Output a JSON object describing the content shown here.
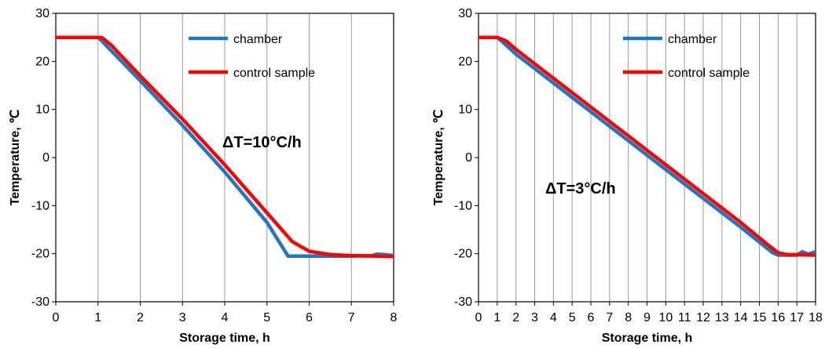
{
  "chart_data": [
    {
      "type": "line",
      "title": "",
      "xlabel": "Storage time, h",
      "ylabel": "Temperature, ℃",
      "xlim": [
        0,
        8
      ],
      "ylim": [
        -30,
        30
      ],
      "xticks": [
        "0",
        "1",
        "2",
        "3",
        "4",
        "5",
        "6",
        "7",
        "8"
      ],
      "yticks": [
        "-30",
        "-20",
        "-10",
        "0",
        "10",
        "20",
        "30"
      ],
      "grid": "vertical",
      "legend": "top-right",
      "annotation": "ΔT=10°C/h",
      "series": [
        {
          "name": "chamber",
          "color": "#1f77c4",
          "points": [
            [
              0,
              25
            ],
            [
              1,
              25
            ],
            [
              1.05,
              24.6
            ],
            [
              2,
              16
            ],
            [
              3,
              6.7
            ],
            [
              4,
              -3
            ],
            [
              5,
              -13.5
            ],
            [
              5.5,
              -20.5
            ],
            [
              6,
              -20.5
            ],
            [
              7,
              -20.5
            ],
            [
              7.5,
              -20.4
            ],
            [
              7.6,
              -20.1
            ],
            [
              7.8,
              -20.2
            ],
            [
              8,
              -20.4
            ]
          ]
        },
        {
          "name": "control sample",
          "color": "#ff0000",
          "points": [
            [
              0,
              25
            ],
            [
              1,
              25
            ],
            [
              1.1,
              24.9
            ],
            [
              1.3,
              23.5
            ],
            [
              2,
              17
            ],
            [
              3,
              8
            ],
            [
              4,
              -1.5
            ],
            [
              5,
              -11.5
            ],
            [
              5.6,
              -17.5
            ],
            [
              6,
              -19.5
            ],
            [
              6.5,
              -20.2
            ],
            [
              7,
              -20.4
            ],
            [
              8,
              -20.6
            ]
          ]
        }
      ]
    },
    {
      "type": "line",
      "title": "",
      "xlabel": "Storage time, h",
      "ylabel": "Temperature, ℃",
      "xlim": [
        0,
        18
      ],
      "ylim": [
        -30,
        30
      ],
      "xticks": [
        "0",
        "1",
        "2",
        "3",
        "4",
        "5",
        "6",
        "7",
        "8",
        "9",
        "10",
        "11",
        "12",
        "13",
        "14",
        "15",
        "16",
        "17",
        "18"
      ],
      "yticks": [
        "-30",
        "-20",
        "-10",
        "0",
        "10",
        "20",
        "30"
      ],
      "grid": "vertical",
      "legend": "top-right",
      "annotation": "ΔT=3°C/h",
      "series": [
        {
          "name": "chamber",
          "color": "#1f77c4",
          "points": [
            [
              0,
              25
            ],
            [
              1,
              25
            ],
            [
              1.3,
              24
            ],
            [
              2,
              21.5
            ],
            [
              4,
              15.5
            ],
            [
              6,
              9.5
            ],
            [
              8,
              3.5
            ],
            [
              10,
              -2.5
            ],
            [
              12,
              -8.5
            ],
            [
              14,
              -14.5
            ],
            [
              15.7,
              -19.8
            ],
            [
              16,
              -20.3
            ],
            [
              17,
              -20.3
            ],
            [
              17.3,
              -19.6
            ],
            [
              17.6,
              -20.1
            ],
            [
              18,
              -19.6
            ]
          ]
        },
        {
          "name": "control sample",
          "color": "#ff0000",
          "points": [
            [
              0,
              25
            ],
            [
              1,
              25
            ],
            [
              1.5,
              24.2
            ],
            [
              2,
              22.5
            ],
            [
              4,
              16.5
            ],
            [
              6,
              10.5
            ],
            [
              8,
              4.5
            ],
            [
              10,
              -1.5
            ],
            [
              12,
              -7.5
            ],
            [
              14,
              -13.5
            ],
            [
              15.5,
              -18.3
            ],
            [
              16,
              -19.8
            ],
            [
              16.5,
              -20.2
            ],
            [
              17,
              -20.2
            ],
            [
              18,
              -20.3
            ]
          ]
        }
      ]
    }
  ]
}
